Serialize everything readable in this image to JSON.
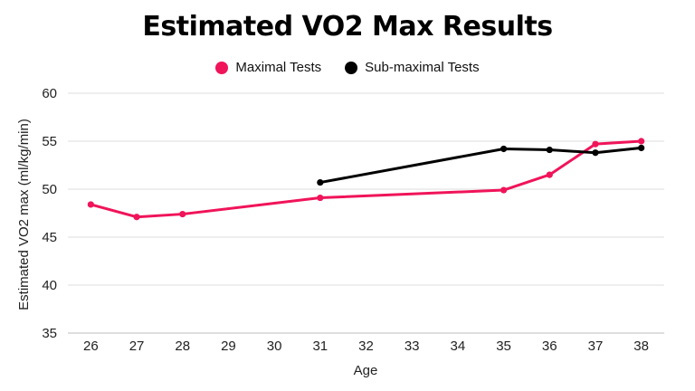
{
  "chart_data": {
    "type": "line",
    "title": "Estimated VO2 Max Results",
    "xlabel": "Age",
    "ylabel": "Estimated VO2 max (ml/kg/min)",
    "categories": [
      "26",
      "27",
      "28",
      "29",
      "30",
      "31",
      "32",
      "33",
      "34",
      "35",
      "36",
      "37",
      "38"
    ],
    "ylim": [
      35,
      60
    ],
    "yticks": [
      35,
      40,
      45,
      50,
      55,
      60
    ],
    "grid": true,
    "legend_position": "top-center",
    "series": [
      {
        "name": "Maximal Tests",
        "color": "#f0145a",
        "points": [
          {
            "x": "26",
            "y": 48.4
          },
          {
            "x": "27",
            "y": 47.1
          },
          {
            "x": "28",
            "y": 47.4
          },
          {
            "x": "31",
            "y": 49.1
          },
          {
            "x": "35",
            "y": 49.9
          },
          {
            "x": "36",
            "y": 51.5
          },
          {
            "x": "37",
            "y": 54.7
          },
          {
            "x": "38",
            "y": 55.0
          }
        ]
      },
      {
        "name": "Sub-maximal Tests",
        "color": "#000000",
        "points": [
          {
            "x": "31",
            "y": 50.7
          },
          {
            "x": "35",
            "y": 54.2
          },
          {
            "x": "36",
            "y": 54.1
          },
          {
            "x": "37",
            "y": 53.8
          },
          {
            "x": "38",
            "y": 54.3
          }
        ]
      }
    ]
  }
}
